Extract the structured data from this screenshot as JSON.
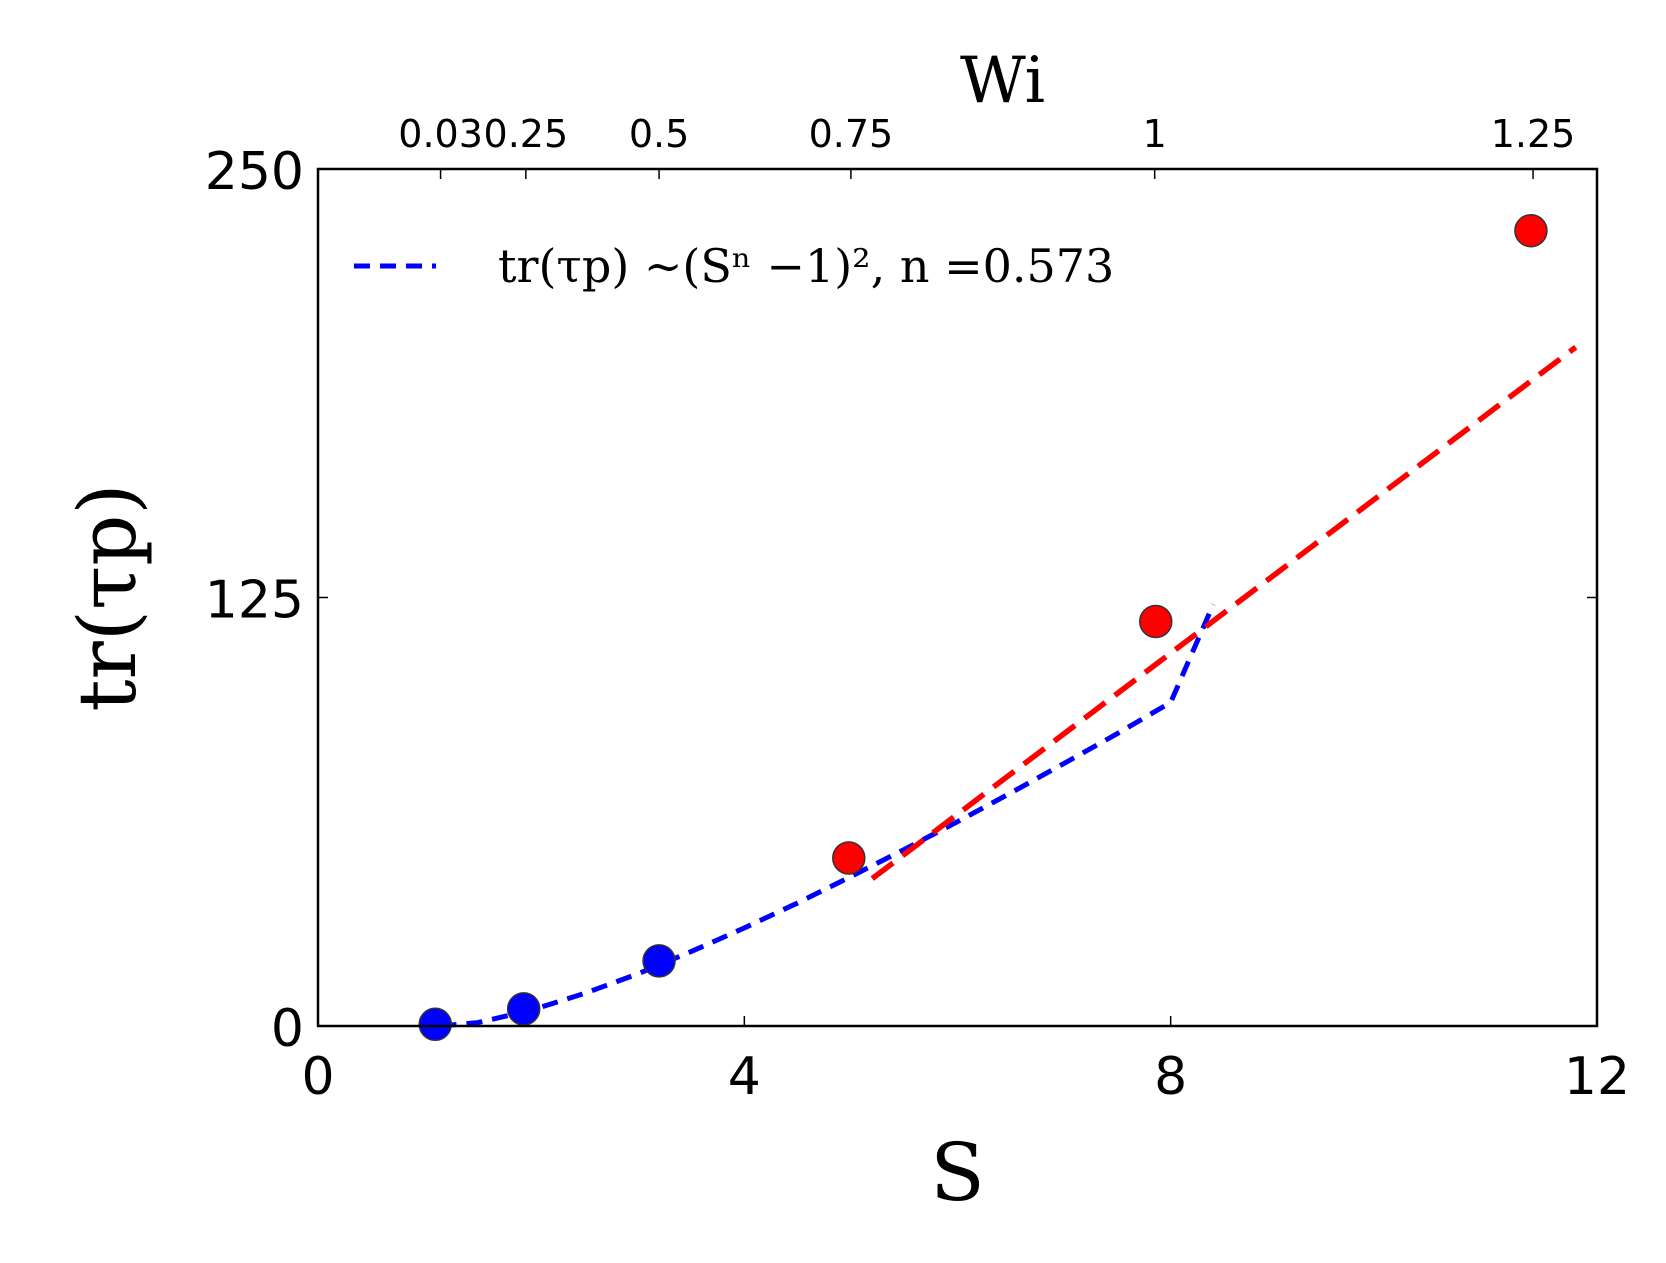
{
  "chart_data": {
    "type": "scatter",
    "title": "",
    "xlabel": "S",
    "ylabel": "tr(τp)",
    "x2label": "Wi",
    "xlim": [
      0,
      12
    ],
    "ylim": [
      0,
      250
    ],
    "xticks": [
      0,
      4,
      8,
      12
    ],
    "yticks": [
      0,
      125,
      250
    ],
    "x2ticks": [
      {
        "label": "0.03",
        "s": 1.15
      },
      {
        "label": "0.25",
        "s": 1.95
      },
      {
        "label": "0.5",
        "s": 3.2
      },
      {
        "label": "0.75",
        "s": 5.0
      },
      {
        "label": "1",
        "s": 7.85
      },
      {
        "label": "1.25",
        "s": 11.4
      }
    ],
    "grid": false,
    "legend_position": "top-left",
    "series": [
      {
        "kind": "points",
        "color": "#0000ff",
        "x": [
          1.1,
          1.93,
          3.2
        ],
        "y": [
          0.5,
          5,
          19
        ]
      },
      {
        "kind": "points",
        "color": "#ff0000",
        "x": [
          4.98,
          7.86,
          11.38
        ],
        "y": [
          49,
          118,
          232
        ]
      },
      {
        "name": "tr(τp) ∼(Sⁿ −1)², n =0.573",
        "kind": "dashed-line",
        "color": "#0000ff",
        "x": [
          1.15,
          1.5,
          2.0,
          2.5,
          3.0,
          3.5,
          4.0,
          4.5,
          5.0,
          5.5,
          6.0,
          6.5,
          7.0,
          7.5,
          8.0,
          8.4
        ],
        "y": [
          0.0,
          1.0,
          4.6,
          9.5,
          15.2,
          21.7,
          28.6,
          35.9,
          43.6,
          51.5,
          59.6,
          68.0,
          76.6,
          85.3,
          94.4,
          123
        ]
      },
      {
        "kind": "dashed-line",
        "color": "#ff0000",
        "x": [
          5.2,
          11.8
        ],
        "y": [
          43,
          198
        ]
      }
    ]
  }
}
